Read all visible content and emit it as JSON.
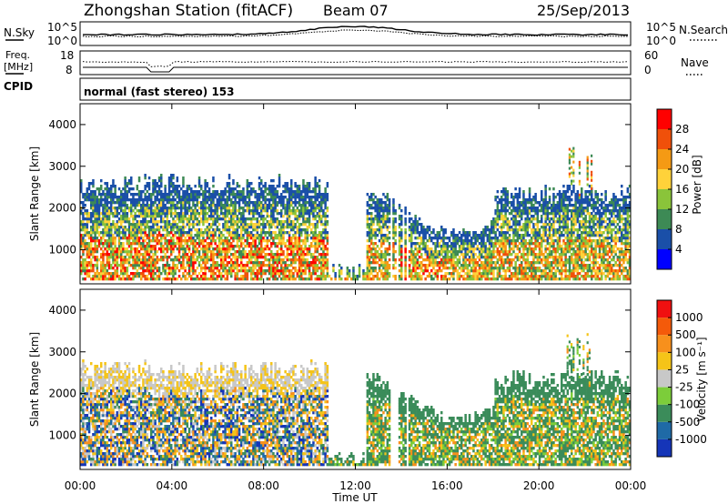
{
  "header": {
    "station": "Zhongshan Station (fitACF)",
    "beam": "Beam 07",
    "date": "25/Sep/2013"
  },
  "noise_panel": {
    "left_label": "N.Sky",
    "right_label": "N.Search",
    "yticks": [
      "10^5",
      "10^0"
    ]
  },
  "freq_panel": {
    "left_label_1": "Freq.",
    "left_label_2": "[MHz]",
    "right_label": "Nave",
    "left_ticks": [
      "18",
      "8"
    ],
    "right_ticks": [
      "60",
      "0"
    ]
  },
  "cpid": {
    "label": "CPID",
    "mode": "normal (fast stereo) 153"
  },
  "chart_data": [
    {
      "type": "heatmap",
      "title": "Power",
      "ylabel": "Slant Range [km]",
      "xlabel": "",
      "ylim": [
        180,
        4500
      ],
      "yticks": [
        "4000",
        "3000",
        "2000",
        "1000"
      ],
      "colorbar": {
        "label": "Power [dB]",
        "tick_labels": [
          "28",
          "24",
          "20",
          "16",
          "12",
          "8",
          "4"
        ],
        "colors": [
          "#0000ff",
          "#1a4fa8",
          "#3d8a55",
          "#8ac43a",
          "#ffd23a",
          "#f59a14",
          "#f0500a",
          "#ff0000"
        ]
      }
    },
    {
      "type": "heatmap",
      "title": "Velocity",
      "ylabel": "Slant Range [km]",
      "xlabel": "Time UT",
      "ylim": [
        180,
        4500
      ],
      "yticks": [
        "4000",
        "3000",
        "2000",
        "1000"
      ],
      "x_tick_labels": [
        "00:00",
        "04:00",
        "08:00",
        "12:00",
        "16:00",
        "20:00",
        "00:00"
      ],
      "colorbar": {
        "label": "Velocity [m s⁻¹]",
        "tick_labels": [
          "1000",
          "500",
          "100",
          "25",
          "-25",
          "-100",
          "-500",
          "-1000"
        ],
        "colors": [
          "#1535b8",
          "#1f6aa6",
          "#3b8c5a",
          "#7ccd3a",
          "#c8c8c8",
          "#f5c418",
          "#f7901c",
          "#f45a0a",
          "#f01010"
        ]
      }
    }
  ]
}
